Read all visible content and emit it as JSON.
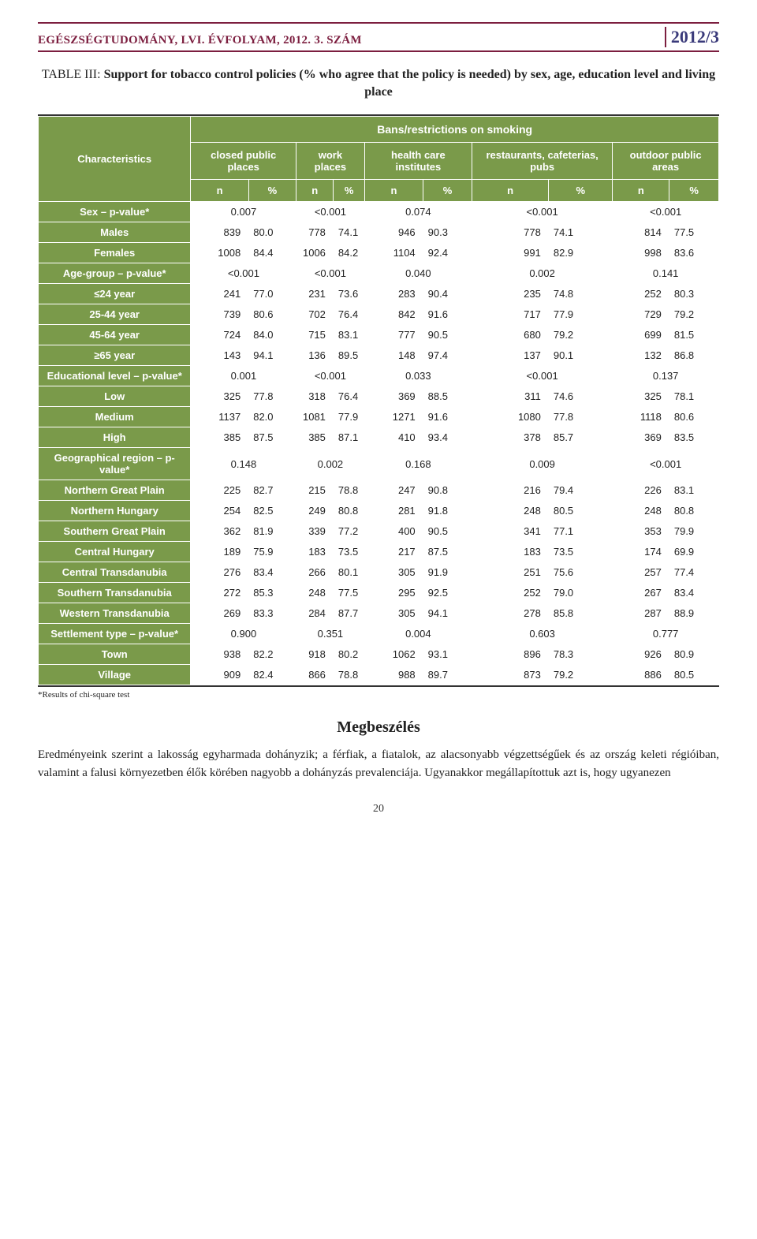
{
  "header": {
    "journal": "EGÉSZSÉGTUDOMÁNY, LVI. ÉVFOLYAM, 2012. 3. SZÁM",
    "issue": "2012/3"
  },
  "caption": {
    "lead": "TABLE III: ",
    "title_bold": "Support for tobacco control policies (% who agree that the policy is needed) by sex, age, education level and living place"
  },
  "table": {
    "colors": {
      "header_bg": "#7a9a4a",
      "header_fg": "#ffffff",
      "rule": "#333333"
    },
    "top_label": "Bans/restrictions on smoking",
    "row_header": "Characteristics",
    "groups": [
      "closed public places",
      "work places",
      "health care institutes",
      "restaurants, cafeterias, pubs",
      "outdoor public areas"
    ],
    "units": [
      "n",
      "%",
      "n",
      "%",
      "n",
      "%",
      "n",
      "%",
      "n",
      "%"
    ],
    "rows": [
      {
        "type": "pvalue",
        "label": "Sex – p-value*",
        "values": [
          "0.007",
          "<0.001",
          "0.074",
          "<0.001",
          "<0.001"
        ]
      },
      {
        "type": "data",
        "label": "Males",
        "cells": [
          "839",
          "80.0",
          "778",
          "74.1",
          "946",
          "90.3",
          "778",
          "74.1",
          "814",
          "77.5"
        ]
      },
      {
        "type": "data",
        "label": "Females",
        "cells": [
          "1008",
          "84.4",
          "1006",
          "84.2",
          "1104",
          "92.4",
          "991",
          "82.9",
          "998",
          "83.6"
        ]
      },
      {
        "type": "pvalue",
        "label": "Age-group – p-value*",
        "values": [
          "<0.001",
          "<0.001",
          "0.040",
          "0.002",
          "0.141"
        ]
      },
      {
        "type": "data",
        "label": "≤24 year",
        "cells": [
          "241",
          "77.0",
          "231",
          "73.6",
          "283",
          "90.4",
          "235",
          "74.8",
          "252",
          "80.3"
        ]
      },
      {
        "type": "data",
        "label": "25-44 year",
        "cells": [
          "739",
          "80.6",
          "702",
          "76.4",
          "842",
          "91.6",
          "717",
          "77.9",
          "729",
          "79.2"
        ]
      },
      {
        "type": "data",
        "label": "45-64 year",
        "cells": [
          "724",
          "84.0",
          "715",
          "83.1",
          "777",
          "90.5",
          "680",
          "79.2",
          "699",
          "81.5"
        ]
      },
      {
        "type": "data",
        "label": "≥65 year",
        "cells": [
          "143",
          "94.1",
          "136",
          "89.5",
          "148",
          "97.4",
          "137",
          "90.1",
          "132",
          "86.8"
        ]
      },
      {
        "type": "pvalue",
        "label": "Educational level – p-value*",
        "values": [
          "0.001",
          "<0.001",
          "0.033",
          "<0.001",
          "0.137"
        ]
      },
      {
        "type": "data",
        "label": "Low",
        "cells": [
          "325",
          "77.8",
          "318",
          "76.4",
          "369",
          "88.5",
          "311",
          "74.6",
          "325",
          "78.1"
        ]
      },
      {
        "type": "data",
        "label": "Medium",
        "cells": [
          "1137",
          "82.0",
          "1081",
          "77.9",
          "1271",
          "91.6",
          "1080",
          "77.8",
          "1118",
          "80.6"
        ]
      },
      {
        "type": "data",
        "label": "High",
        "cells": [
          "385",
          "87.5",
          "385",
          "87.1",
          "410",
          "93.4",
          "378",
          "85.7",
          "369",
          "83.5"
        ]
      },
      {
        "type": "pvalue",
        "label": "Geographical region – p-value*",
        "values": [
          "0.148",
          "0.002",
          "0.168",
          "0.009",
          "<0.001"
        ]
      },
      {
        "type": "data",
        "label": "Northern Great Plain",
        "cells": [
          "225",
          "82.7",
          "215",
          "78.8",
          "247",
          "90.8",
          "216",
          "79.4",
          "226",
          "83.1"
        ]
      },
      {
        "type": "data",
        "label": "Northern Hungary",
        "cells": [
          "254",
          "82.5",
          "249",
          "80.8",
          "281",
          "91.8",
          "248",
          "80.5",
          "248",
          "80.8"
        ]
      },
      {
        "type": "data",
        "label": "Southern Great Plain",
        "cells": [
          "362",
          "81.9",
          "339",
          "77.2",
          "400",
          "90.5",
          "341",
          "77.1",
          "353",
          "79.9"
        ]
      },
      {
        "type": "data",
        "label": "Central Hungary",
        "cells": [
          "189",
          "75.9",
          "183",
          "73.5",
          "217",
          "87.5",
          "183",
          "73.5",
          "174",
          "69.9"
        ]
      },
      {
        "type": "data",
        "label": "Central Transdanubia",
        "cells": [
          "276",
          "83.4",
          "266",
          "80.1",
          "305",
          "91.9",
          "251",
          "75.6",
          "257",
          "77.4"
        ]
      },
      {
        "type": "data",
        "label": "Southern Transdanubia",
        "cells": [
          "272",
          "85.3",
          "248",
          "77.5",
          "295",
          "92.5",
          "252",
          "79.0",
          "267",
          "83.4"
        ]
      },
      {
        "type": "data",
        "label": "Western Transdanubia",
        "cells": [
          "269",
          "83.3",
          "284",
          "87.7",
          "305",
          "94.1",
          "278",
          "85.8",
          "287",
          "88.9"
        ]
      },
      {
        "type": "pvalue",
        "label": "Settlement type – p-value*",
        "values": [
          "0.900",
          "0.351",
          "0.004",
          "0.603",
          "0.777"
        ]
      },
      {
        "type": "data",
        "label": "Town",
        "cells": [
          "938",
          "82.2",
          "918",
          "80.2",
          "1062",
          "93.1",
          "896",
          "78.3",
          "926",
          "80.9"
        ]
      },
      {
        "type": "data",
        "label": "Village",
        "cells": [
          "909",
          "82.4",
          "866",
          "78.8",
          "988",
          "89.7",
          "873",
          "79.2",
          "886",
          "80.5"
        ]
      }
    ]
  },
  "footnote": "*Results of chi-square test",
  "section_title": "Megbeszélés",
  "paragraph": "Eredményeink szerint a lakosság egyharmada dohányzik; a férfiak, a fiatalok, az alacsonyabb végzettségűek és az ország keleti régióiban, valamint a falusi környezetben élők körében nagyobb a dohányzás prevalenciája. Ugyanakkor megállapítottuk azt is, hogy ugyanezen",
  "page_number": "20"
}
